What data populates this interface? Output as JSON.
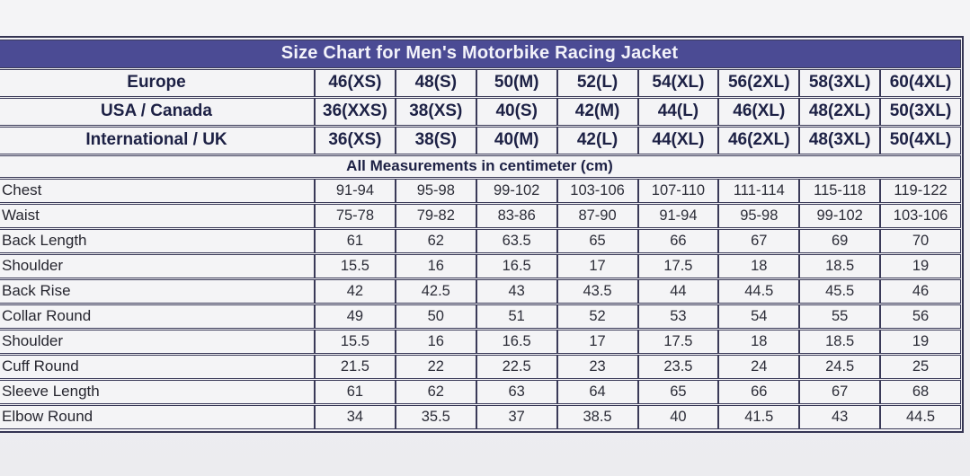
{
  "chart_data": {
    "type": "table",
    "title": "Size Chart for Men's Motorbike Racing Jacket",
    "note": "All Measurements in centimeter (cm)",
    "header_rows": [
      {
        "label": "Europe",
        "values": [
          "46(XS)",
          "48(S)",
          "50(M)",
          "52(L)",
          "54(XL)",
          "56(2XL)",
          "58(3XL)",
          "60(4XL)"
        ]
      },
      {
        "label": "USA / Canada",
        "values": [
          "36(XXS)",
          "38(XS)",
          "40(S)",
          "42(M)",
          "44(L)",
          "46(XL)",
          "48(2XL)",
          "50(3XL)"
        ]
      },
      {
        "label": "International / UK",
        "values": [
          "36(XS)",
          "38(S)",
          "40(M)",
          "42(L)",
          "44(XL)",
          "46(2XL)",
          "48(3XL)",
          "50(4XL)"
        ]
      }
    ],
    "measurement_rows": [
      {
        "label": "Chest",
        "values": [
          "91-94",
          "95-98",
          "99-102",
          "103-106",
          "107-110",
          "111-114",
          "115-118",
          "119-122"
        ]
      },
      {
        "label": "Waist",
        "values": [
          "75-78",
          "79-82",
          "83-86",
          "87-90",
          "91-94",
          "95-98",
          "99-102",
          "103-106"
        ]
      },
      {
        "label": "Back Length",
        "values": [
          "61",
          "62",
          "63.5",
          "65",
          "66",
          "67",
          "69",
          "70"
        ]
      },
      {
        "label": "Shoulder",
        "values": [
          "15.5",
          "16",
          "16.5",
          "17",
          "17.5",
          "18",
          "18.5",
          "19"
        ]
      },
      {
        "label": "Back Rise",
        "values": [
          "42",
          "42.5",
          "43",
          "43.5",
          "44",
          "44.5",
          "45.5",
          "46"
        ]
      },
      {
        "label": "Collar Round",
        "values": [
          "49",
          "50",
          "51",
          "52",
          "53",
          "54",
          "55",
          "56"
        ]
      },
      {
        "label": "Shoulder",
        "values": [
          "15.5",
          "16",
          "16.5",
          "17",
          "17.5",
          "18",
          "18.5",
          "19"
        ]
      },
      {
        "label": "Cuff Round",
        "values": [
          "21.5",
          "22",
          "22.5",
          "23",
          "23.5",
          "24",
          "24.5",
          "25"
        ]
      },
      {
        "label": "Sleeve Length",
        "values": [
          "61",
          "62",
          "63",
          "64",
          "65",
          "66",
          "67",
          "68"
        ]
      },
      {
        "label": "Elbow Round",
        "values": [
          "34",
          "35.5",
          "37",
          "38.5",
          "40",
          "41.5",
          "43",
          "44.5"
        ]
      }
    ],
    "colors": {
      "title_bar": "#4b4b94",
      "title_text": "#f3f3fa",
      "border": "#3a3a58",
      "cell_background": "#f4f4f6",
      "page_background": "#ededf0",
      "header_text": "#1d2145",
      "data_text": "#2c2d38"
    }
  }
}
